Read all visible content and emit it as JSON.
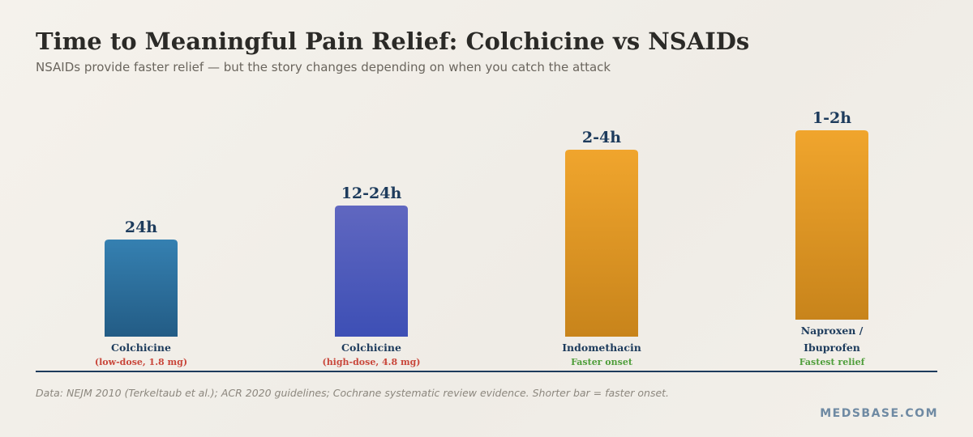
{
  "title": "Time to Meaningful Pain Relief: Colchicine vs NSAIDs",
  "subtitle": "NSAIDs provide faster relief — but the story changes depending on when you catch the attack",
  "source": "Data: NEJM 2010 (Terkeltaub et al.); ACR 2020 guidelines; Cochrane systematic review evidence. Shorter bar = faster onset.",
  "brand": "MEDSBASE.COM",
  "chart_data": {
    "type": "bar",
    "categories": [
      [
        "Colchicine"
      ],
      [
        "Colchicine"
      ],
      [
        "Indomethacin"
      ],
      [
        "Naproxen /",
        "Ibuprofen"
      ]
    ],
    "value_labels": [
      "24h",
      "12-24h",
      "2-4h",
      "1-2h"
    ],
    "bar_levels": [
      0.4,
      0.54,
      0.77,
      0.85
    ],
    "notes": [
      "(low-dose, 1.8 mg)",
      "(high-dose, 4.8 mg)",
      "Faster onset",
      "Fastest relief"
    ],
    "colors": {
      "bars": [
        [
          "#3580b1",
          "#235c85"
        ],
        [
          "#6067c0",
          "#3d4fb5"
        ],
        [
          "#f0a52d",
          "#c8841b"
        ],
        [
          "#f0a52d",
          "#c8841b"
        ]
      ],
      "notes": [
        "#c9473b",
        "#c9473b",
        "#4f9e3b",
        "#4f9e3b"
      ],
      "value_label": "#1d3b5c",
      "category_label": "#1d3b5c",
      "baseline": "#1d3b5c"
    },
    "grid": false,
    "legend": "none"
  }
}
